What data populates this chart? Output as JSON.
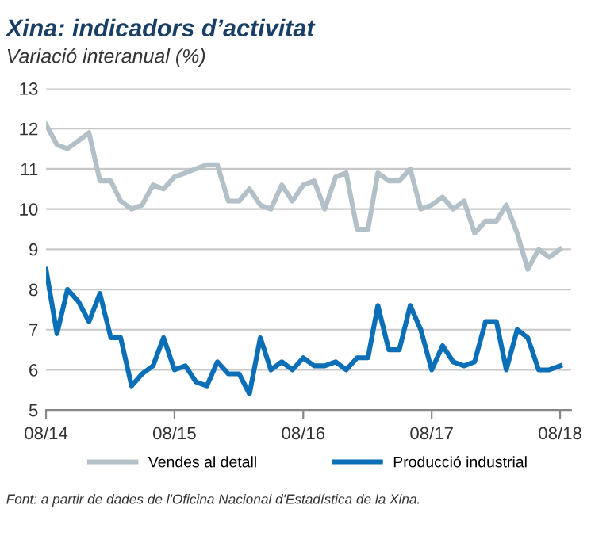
{
  "chart_data": {
    "type": "line",
    "title": "Xina: indicadors d’activitat",
    "subtitle": "Variació interanual (%)",
    "x": [
      "2014-08",
      "2014-09",
      "2014-10",
      "2014-11",
      "2014-12",
      "2015-01",
      "2015-02",
      "2015-03",
      "2015-04",
      "2015-05",
      "2015-06",
      "2015-07",
      "2015-08",
      "2015-09",
      "2015-10",
      "2015-11",
      "2015-12",
      "2016-01",
      "2016-02",
      "2016-03",
      "2016-04",
      "2016-05",
      "2016-06",
      "2016-07",
      "2016-08",
      "2016-09",
      "2016-10",
      "2016-11",
      "2016-12",
      "2017-01",
      "2017-02",
      "2017-03",
      "2017-04",
      "2017-05",
      "2017-06",
      "2017-07",
      "2017-08",
      "2017-09",
      "2017-10",
      "2017-11",
      "2017-12",
      "2018-01",
      "2018-02",
      "2018-03",
      "2018-04",
      "2018-05",
      "2018-06",
      "2018-07",
      "2018-08"
    ],
    "series": [
      {
        "name": "Vendes al detall",
        "color": "#b4c0c7",
        "values": [
          12.1,
          11.6,
          11.5,
          11.7,
          11.9,
          10.7,
          10.7,
          10.2,
          10.0,
          10.1,
          10.6,
          10.5,
          10.8,
          10.9,
          11.0,
          11.1,
          11.1,
          10.2,
          10.2,
          10.5,
          10.1,
          10.0,
          10.6,
          10.2,
          10.6,
          10.7,
          10.0,
          10.8,
          10.9,
          9.5,
          9.5,
          10.9,
          10.7,
          10.7,
          11.0,
          10.0,
          10.1,
          10.3,
          10.0,
          10.2,
          9.4,
          9.7,
          9.7,
          10.1,
          9.4,
          8.5,
          9.0,
          8.8,
          9.0
        ]
      },
      {
        "name": "Producció industrial",
        "color": "#0a6fb7",
        "values": [
          8.5,
          6.9,
          8.0,
          7.7,
          7.2,
          7.9,
          6.8,
          6.8,
          5.6,
          5.9,
          6.1,
          6.8,
          6.0,
          6.1,
          5.7,
          5.6,
          6.2,
          5.9,
          5.9,
          5.4,
          6.8,
          6.0,
          6.2,
          6.0,
          6.3,
          6.1,
          6.1,
          6.2,
          6.0,
          6.3,
          6.3,
          7.6,
          6.5,
          6.5,
          7.6,
          7.0,
          6.0,
          6.6,
          6.2,
          6.1,
          6.2,
          7.2,
          7.2,
          6.0,
          7.0,
          6.8,
          6.0,
          6.0,
          6.1
        ]
      }
    ],
    "ylim": [
      5,
      13
    ],
    "yticks": [
      5,
      6,
      7,
      8,
      9,
      10,
      11,
      12,
      13
    ],
    "xlim": [
      "2014-08",
      "2018-09"
    ],
    "xticks": [
      {
        "value": "2014-08",
        "label": "08/14"
      },
      {
        "value": "2015-08",
        "label": "08/15"
      },
      {
        "value": "2016-08",
        "label": "08/16"
      },
      {
        "value": "2017-08",
        "label": "08/17"
      },
      {
        "value": "2018-08",
        "label": "08/18"
      }
    ],
    "grid": "y",
    "legend": "bottom",
    "marker": "none",
    "line_style": "solid",
    "annotations": [
      "Font: a partir de dades de l'Oficina Nacional d'Estadística de la Xina."
    ]
  }
}
